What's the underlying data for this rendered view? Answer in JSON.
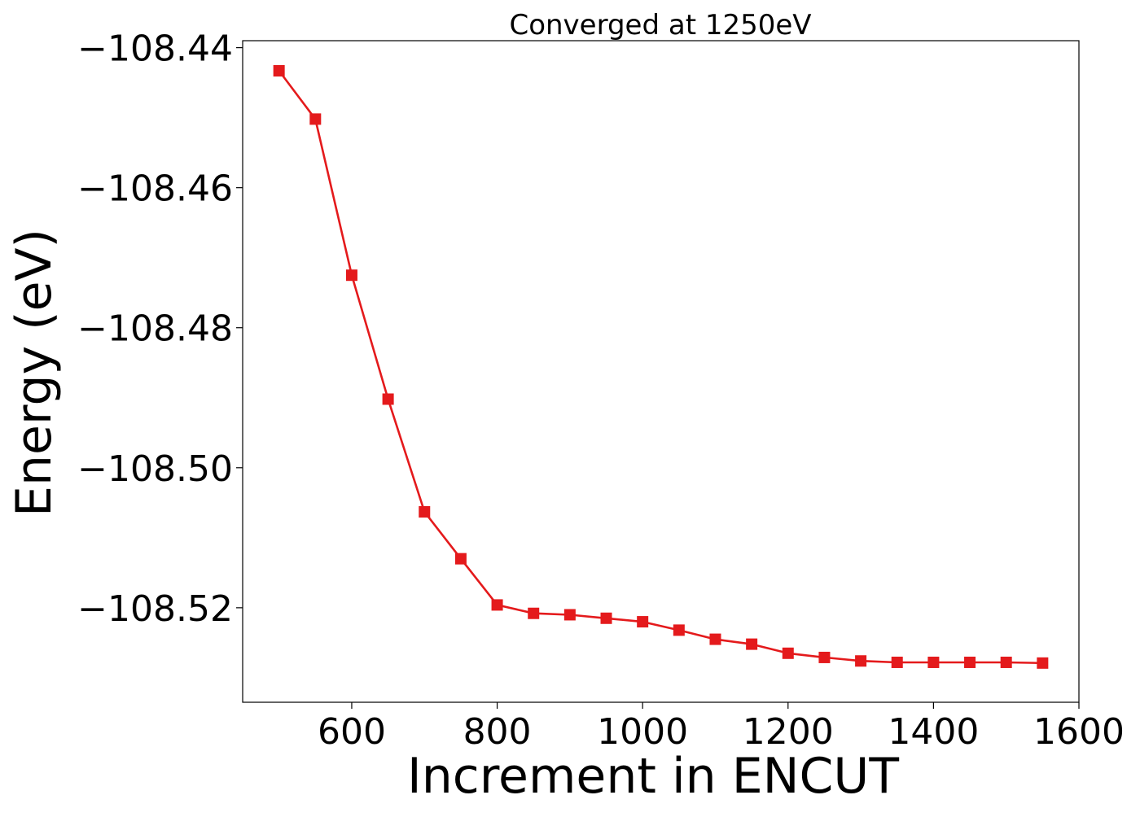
{
  "chart_data": {
    "type": "line",
    "title": "Converged at 1250eV",
    "xlabel": "Increment in ENCUT",
    "ylabel": "Energy (eV)",
    "xlim": [
      450,
      1600
    ],
    "ylim": [
      -108.5335,
      -108.439
    ],
    "x_ticks": [
      600,
      800,
      1000,
      1200,
      1400,
      1600
    ],
    "x_tick_labels": [
      "600",
      "800",
      "1000",
      "1200",
      "1400",
      "1600"
    ],
    "y_ticks": [
      -108.44,
      -108.46,
      -108.48,
      -108.5,
      -108.52
    ],
    "y_tick_labels": [
      "−108.44",
      "−108.46",
      "−108.48",
      "−108.50",
      "−108.52"
    ],
    "grid": false,
    "legend": "none",
    "color": "#e41a1c",
    "marker": "square",
    "series": [
      {
        "x": [
          500,
          550,
          600,
          650,
          700,
          750,
          800,
          850,
          900,
          950,
          1000,
          1050,
          1100,
          1150,
          1200,
          1250,
          1300,
          1350,
          1400,
          1450,
          1500,
          1550
        ],
        "y": [
          -108.4433,
          -108.4502,
          -108.4725,
          -108.4902,
          -108.5063,
          -108.513,
          -108.5196,
          -108.5208,
          -108.521,
          -108.5215,
          -108.522,
          -108.5232,
          -108.5245,
          -108.5252,
          -108.5265,
          -108.5271,
          -108.5276,
          -108.5278,
          -108.5278,
          -108.5278,
          -108.5278,
          -108.5279
        ]
      }
    ]
  }
}
